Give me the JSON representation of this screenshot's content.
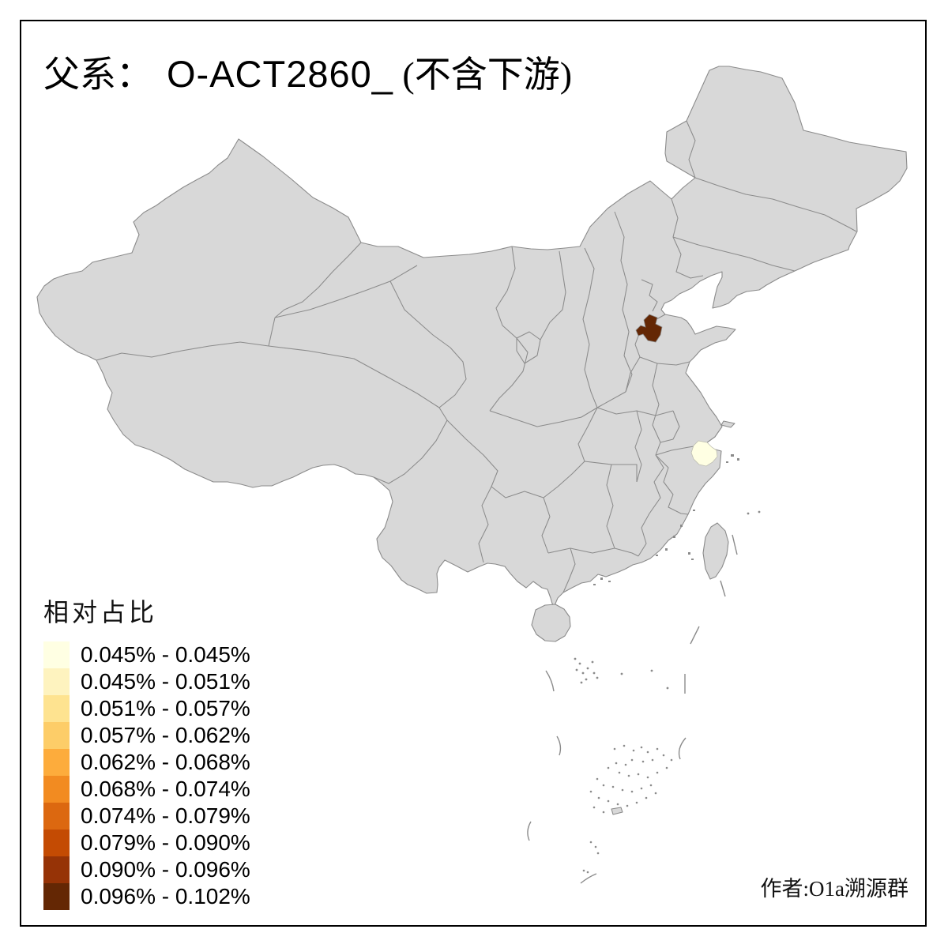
{
  "title": {
    "prefix": "父系：",
    "code": "O-ACT2860_",
    "suffix": "(不含下游)"
  },
  "legend": {
    "title": "相对占比",
    "classes": [
      {
        "label": "0.045% - 0.045%",
        "color": "#FFFFE3"
      },
      {
        "label": "0.045% - 0.051%",
        "color": "#FEF3BF"
      },
      {
        "label": "0.051% - 0.057%",
        "color": "#FEE390"
      },
      {
        "label": "0.057% - 0.062%",
        "color": "#FDCD68"
      },
      {
        "label": "0.062% - 0.068%",
        "color": "#FDAC3C"
      },
      {
        "label": "0.068% - 0.074%",
        "color": "#F28B21"
      },
      {
        "label": "0.074% - 0.079%",
        "color": "#DC6810"
      },
      {
        "label": "0.079% - 0.090%",
        "color": "#C44B03"
      },
      {
        "label": "0.090% - 0.096%",
        "color": "#963306"
      },
      {
        "label": "0.096% - 0.102%",
        "color": "#642704"
      }
    ]
  },
  "map": {
    "base_fill": "#D8D8D8",
    "border_color": "#8B8B8B",
    "background": "#FFFFFF",
    "regions": [
      {
        "name": "northwest-shandong-prefecture",
        "class_label": "0.096% - 0.102%",
        "color": "#642704"
      },
      {
        "name": "north-zhejiang-prefecture",
        "class_label": "0.045% - 0.045%",
        "color": "#FFFFE3"
      }
    ]
  },
  "credit": "作者:O1a溯源群"
}
